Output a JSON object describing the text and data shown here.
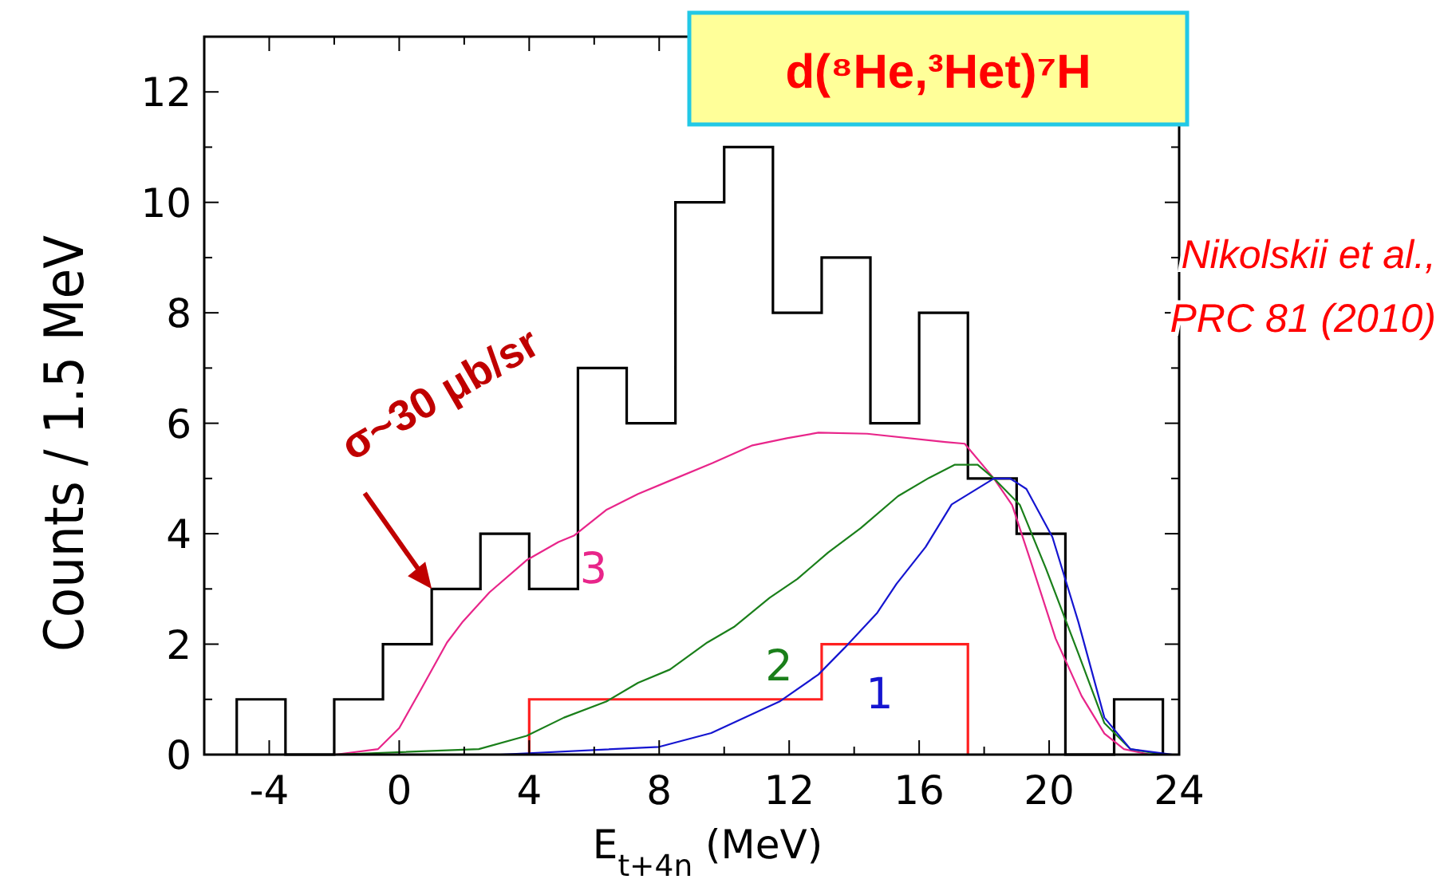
{
  "chart_data": {
    "type": "histogram",
    "title": "d(⁸He,³Het)⁷H",
    "xlabel": "E$_{t+4n}$  (MeV)",
    "ylabel": "Counts / 1.5 MeV",
    "bins": [
      -5,
      -3.5,
      -2,
      -0.5,
      1,
      2.5,
      4,
      5.5,
      7,
      8.5,
      10,
      11.5,
      13,
      14.5,
      16,
      17.5,
      19,
      20.5,
      22,
      23.5
    ],
    "series": [
      {
        "color": "#000000",
        "values": [
          1,
          0,
          1,
          2,
          3,
          4,
          3,
          7,
          6,
          10,
          11,
          8,
          9,
          6,
          8,
          5,
          4,
          0,
          1
        ]
      },
      {
        "color": "#ff2020",
        "bins": [
          4,
          13,
          17.5
        ],
        "values": [
          1,
          2
        ]
      },
      {
        "type": "line",
        "name": "3",
        "color": "#e8258a",
        "x": [
          -1.96,
          -0.65,
          0,
          0.65,
          1.47,
          1.96,
          2.78,
          3.92,
          4.9,
          5.39,
          6.37,
          7.35,
          8.33,
          9.64,
          10.87,
          11.93,
          12.9,
          14.4,
          16.8,
          17.4,
          18.3,
          18.86,
          19.4,
          20.2,
          21,
          21.7,
          22.3,
          23.1
        ],
        "values": [
          0,
          0.1,
          0.48,
          1.16,
          2.03,
          2.41,
          2.94,
          3.52,
          3.85,
          3.97,
          4.43,
          4.72,
          4.96,
          5.28,
          5.6,
          5.73,
          5.83,
          5.81,
          5.66,
          5.63,
          5,
          4.52,
          3.56,
          2.1,
          1.06,
          0.38,
          0.1,
          0
        ]
      },
      {
        "type": "line",
        "name": "2",
        "color": "#1a7f1a",
        "x": [
          -1.96,
          2.45,
          3.92,
          5.07,
          6.37,
          7.35,
          8.33,
          9.48,
          10.3,
          11.4,
          12.25,
          13.2,
          14.2,
          15.35,
          16.3,
          17.1,
          17.8,
          18.3,
          19.1,
          19.9,
          20.9,
          21.7,
          22.5,
          23.5
        ],
        "values": [
          0,
          0.1,
          0.34,
          0.67,
          0.96,
          1.3,
          1.54,
          2.03,
          2.31,
          2.84,
          3.18,
          3.66,
          4.1,
          4.68,
          5.01,
          5.25,
          5.25,
          5,
          4.52,
          3.37,
          1.83,
          0.57,
          0.1,
          0
        ]
      },
      {
        "type": "line",
        "name": "1",
        "color": "#1515d0",
        "x": [
          3.1,
          8,
          9.6,
          11.7,
          12.9,
          13.7,
          14.7,
          15.3,
          16.2,
          17,
          18.3,
          18.8,
          19.3,
          20.1,
          20.9,
          21.7,
          22.5,
          23.8
        ],
        "values": [
          0,
          0.14,
          0.39,
          0.96,
          1.45,
          1.93,
          2.56,
          3.09,
          3.76,
          4.53,
          5,
          5,
          4.81,
          3.94,
          2.4,
          0.67,
          0.1,
          0
        ]
      }
    ],
    "xlim": [
      -6,
      24
    ],
    "ylim": [
      0,
      13
    ],
    "xticks": [
      -4,
      {
        "value": -2,
        "label": null
      },
      0,
      {
        "value": 2,
        "label": null
      },
      4,
      {
        "value": 6,
        "label": null
      },
      8,
      {
        "value": 10,
        "label": null
      },
      12,
      {
        "value": 14,
        "label": null
      },
      16,
      {
        "value": 18,
        "label": null
      },
      20,
      {
        "value": 22,
        "label": null
      },
      24
    ],
    "yticks": [
      0,
      {
        "value": 1,
        "label": null
      },
      2,
      {
        "value": 3,
        "label": null
      },
      4,
      {
        "value": 5,
        "label": null
      },
      6,
      {
        "value": 7,
        "label": null
      },
      8,
      {
        "value": 9,
        "label": null
      },
      10,
      {
        "value": 11,
        "label": null
      },
      12
    ],
    "grid": false,
    "legend": false,
    "annotations": [
      {
        "text": "σ~30 μb/sr",
        "x": 1,
        "y": 3
      },
      "Nikolskii et al.,",
      "PRC 81 (2010)"
    ]
  }
}
